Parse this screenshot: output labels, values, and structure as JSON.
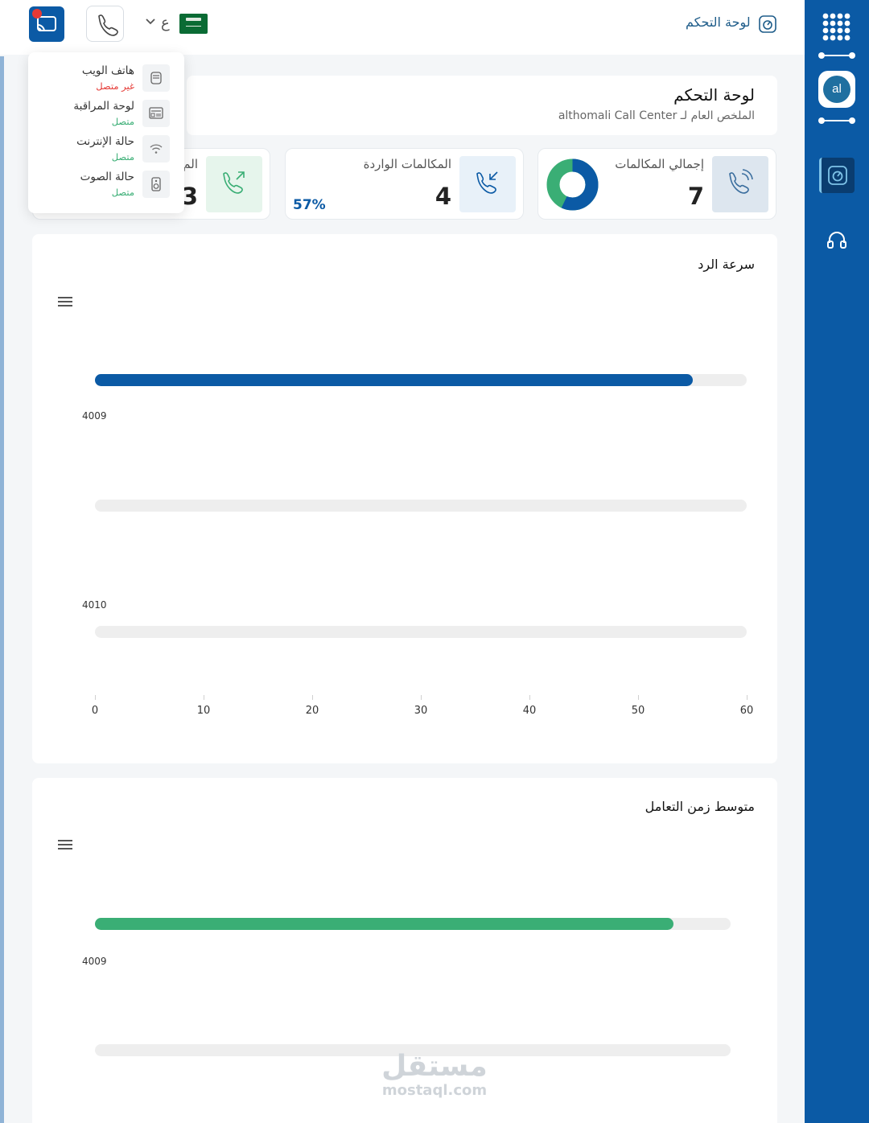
{
  "header": {
    "title": "لوحة التحكم",
    "language": "ع"
  },
  "sidebar": {
    "avatar_initials": "al"
  },
  "summary": {
    "title": "لوحة التحكم",
    "subtitle": "الملخص العام لـ althomali Call Center"
  },
  "stats": [
    {
      "label": "إجمالي المكالمات",
      "value": "7",
      "icon": "phone-ringing-icon"
    },
    {
      "label": "المكالمات الواردة",
      "value": "4",
      "percent": "57%",
      "icon": "phone-incoming-icon"
    },
    {
      "label": "الم",
      "value": "3",
      "icon": "phone-outgoing-icon"
    }
  ],
  "donut": {
    "incoming_fraction": 0.57
  },
  "status_menu": {
    "items": [
      {
        "label": "هاتف الويب",
        "status": "غير متصل",
        "connected": false,
        "icon": "web-phone-icon"
      },
      {
        "label": "لوحة المراقبة",
        "status": "متصل",
        "connected": true,
        "icon": "monitor-board-icon"
      },
      {
        "label": "حالة الإنترنت",
        "status": "متصل",
        "connected": true,
        "icon": "wifi-icon"
      },
      {
        "label": "حالة الصوت",
        "status": "متصل",
        "connected": true,
        "icon": "speaker-icon"
      }
    ]
  },
  "colors": {
    "primary": "#0b5aa5",
    "success": "#3aae75",
    "danger": "#e53935"
  },
  "chart_data": [
    {
      "type": "bar",
      "title": "سرعة الرد",
      "orientation": "horizontal",
      "categories": [
        "4009",
        "4010"
      ],
      "values": [
        55,
        0
      ],
      "xlim": [
        0,
        60
      ],
      "xticks": [
        "0",
        "10",
        "20",
        "30",
        "40",
        "50",
        "60"
      ],
      "bar_color": "#0b5aa5"
    },
    {
      "type": "bar",
      "title": "متوسط زمن التعامل",
      "orientation": "horizontal",
      "categories": [
        "4009"
      ],
      "values": [
        0.91
      ],
      "bar_color": "#3aae75"
    }
  ],
  "watermark": {
    "arabic": "مستقل",
    "latin": "mostaql.com"
  }
}
